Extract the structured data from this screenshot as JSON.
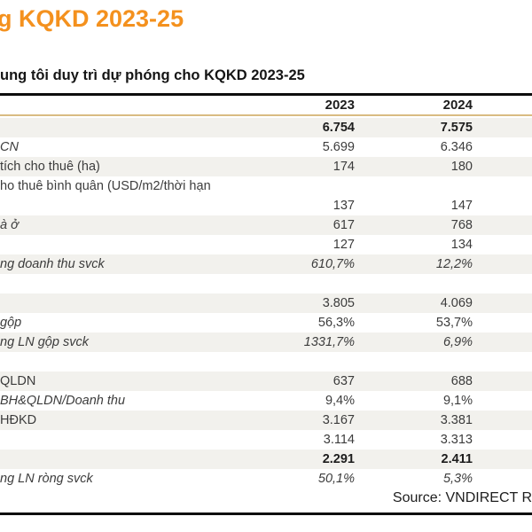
{
  "title": "g KQKD 2023-25",
  "subtitle": "ung tôi duy trì dự phóng cho KQKD 2023-25",
  "source_text": "Source: VNDIRECT R",
  "colors": {
    "accent_orange": "#F4911E",
    "gold_rule": "#D9BC82",
    "row_shade": "#F2F1ED",
    "border": "#0d0d0d"
  },
  "table": {
    "columns": {
      "label": "",
      "y2023": "2023",
      "y2024": "2024"
    },
    "rows": [
      {
        "label": "",
        "v2023": "6.754",
        "v2024": "7.575",
        "shaded": true,
        "bold": true
      },
      {
        "label": "CN",
        "v2023": "5.699",
        "v2024": "6.346",
        "italicLabel": true
      },
      {
        "label": "tích cho thuê (ha)",
        "v2023": "174",
        "v2024": "180",
        "shaded": true
      },
      {
        "label": "ho thuê bình quân (USD/m2/thời hạn",
        "v2023": "",
        "v2024": ""
      },
      {
        "label": "",
        "v2023": "137",
        "v2024": "147"
      },
      {
        "label": "à ở",
        "v2023": "617",
        "v2024": "768",
        "shaded": true,
        "italicLabel": true
      },
      {
        "label": "",
        "v2023": "127",
        "v2024": "134"
      },
      {
        "label": "ng doanh thu svck",
        "v2023": "610,7%",
        "v2024": "12,2%",
        "shaded": true,
        "italicLabel": true,
        "italicValues": true
      },
      {
        "label": "",
        "v2023": "",
        "v2024": ""
      },
      {
        "label": "",
        "v2023": "3.805",
        "v2024": "4.069",
        "shaded": true
      },
      {
        "label": "gộp",
        "v2023": "56,3%",
        "v2024": "53,7%",
        "italicLabel": true
      },
      {
        "label": "ng LN gộp svck",
        "v2023": "1331,7%",
        "v2024": "6,9%",
        "shaded": true,
        "italicLabel": true,
        "italicValues": true
      },
      {
        "label": "",
        "v2023": "",
        "v2024": ""
      },
      {
        "label": "QLDN",
        "v2023": "637",
        "v2024": "688",
        "shaded": true
      },
      {
        "label": "BH&QLDN/Doanh thu",
        "v2023": "9,4%",
        "v2024": "9,1%",
        "italicLabel": true
      },
      {
        "label": "HĐKD",
        "v2023": "3.167",
        "v2024": "3.381",
        "shaded": true
      },
      {
        "label": "",
        "v2023": "3.114",
        "v2024": "3.313"
      },
      {
        "label": "",
        "v2023": "2.291",
        "v2024": "2.411",
        "shaded": true,
        "bold": true
      },
      {
        "label": "ng LN ròng svck",
        "v2023": "50,1%",
        "v2024": "5,3%",
        "italicLabel": true,
        "italicValues": true
      }
    ]
  }
}
